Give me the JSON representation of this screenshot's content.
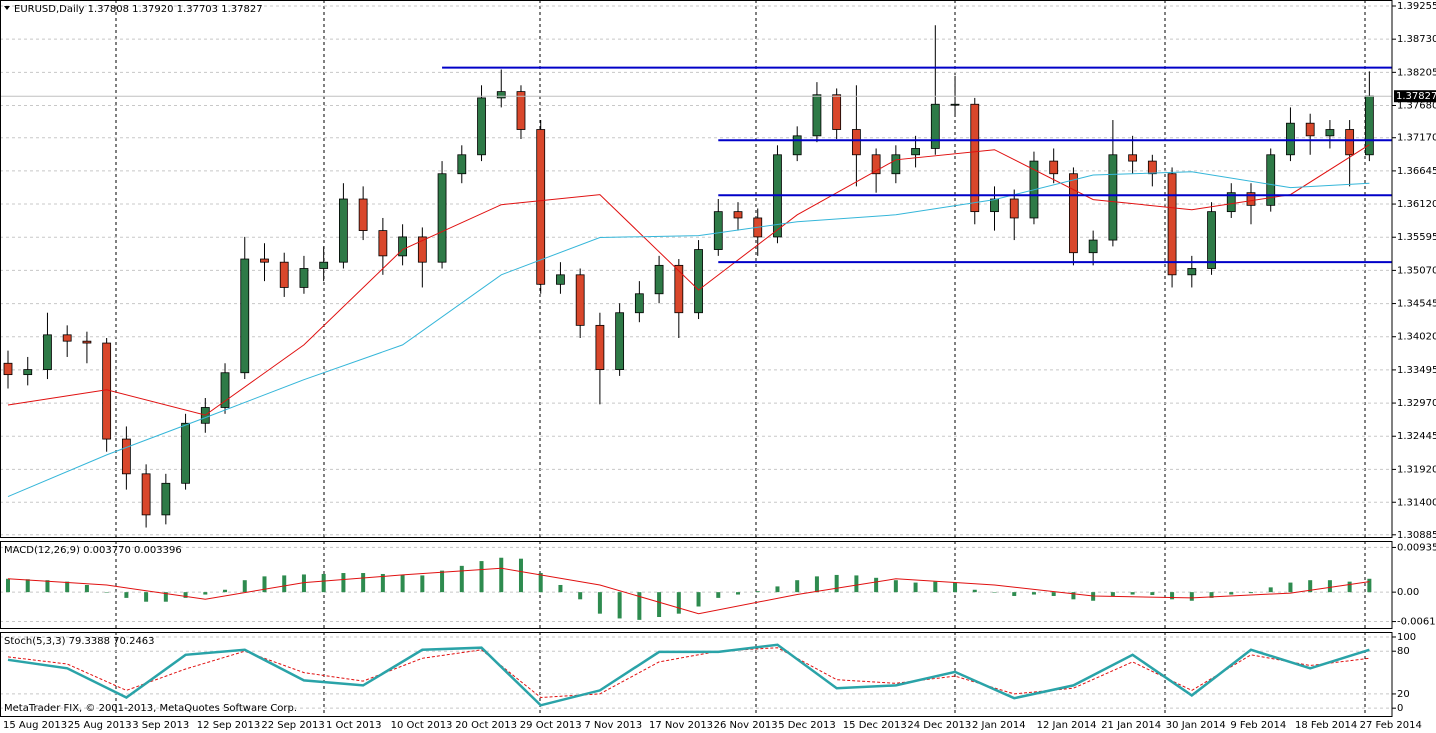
{
  "chart_data": [
    {
      "type": "candlestick",
      "title": "EURUSD,Daily  1.37808 1.37920 1.37703 1.37827",
      "up_color": "#2e7a47",
      "down_color": "#d9472b",
      "open": [
        1.336,
        1.3342,
        1.335,
        1.3405,
        1.3395,
        1.3392,
        1.324,
        1.3185,
        1.312,
        1.317,
        1.3265,
        1.329,
        1.3345,
        1.3525,
        1.352,
        1.348,
        1.351,
        1.352,
        1.362,
        1.357,
        1.353,
        1.356,
        1.352,
        1.366,
        1.369,
        1.378,
        1.379,
        1.373,
        1.3485,
        1.35,
        1.342,
        1.335,
        1.344,
        1.347,
        1.3515,
        1.344,
        1.354,
        1.36,
        1.359,
        1.356,
        1.369,
        1.372,
        1.3785,
        1.373,
        1.369,
        1.366,
        1.369,
        1.37,
        1.377,
        1.377,
        1.36,
        1.362,
        1.359,
        1.368,
        1.366,
        1.3535,
        1.3555,
        1.369,
        1.368,
        1.366,
        1.35,
        1.351,
        1.36,
        1.363,
        1.361,
        1.369,
        1.374,
        1.372,
        1.373,
        1.369
      ],
      "high": [
        1.338,
        1.337,
        1.344,
        1.342,
        1.341,
        1.34,
        1.326,
        1.32,
        1.3185,
        1.328,
        1.3305,
        1.336,
        1.356,
        1.355,
        1.3535,
        1.353,
        1.3545,
        1.3645,
        1.364,
        1.359,
        1.358,
        1.3575,
        1.368,
        1.3705,
        1.38,
        1.3825,
        1.38,
        1.3745,
        1.352,
        1.351,
        1.344,
        1.3455,
        1.349,
        1.353,
        1.3525,
        1.3555,
        1.362,
        1.3615,
        1.3605,
        1.3705,
        1.3735,
        1.3805,
        1.3795,
        1.38,
        1.37,
        1.3705,
        1.372,
        1.3895,
        1.3815,
        1.378,
        1.364,
        1.3635,
        1.3695,
        1.37,
        1.367,
        1.357,
        1.3745,
        1.372,
        1.369,
        1.367,
        1.353,
        1.3615,
        1.3645,
        1.3645,
        1.37,
        1.3765,
        1.3755,
        1.3745,
        1.3745,
        1.3822
      ],
      "low": [
        1.332,
        1.3325,
        1.3335,
        1.337,
        1.336,
        1.322,
        1.316,
        1.31,
        1.3105,
        1.316,
        1.325,
        1.328,
        1.3335,
        1.349,
        1.3465,
        1.347,
        1.349,
        1.351,
        1.3555,
        1.35,
        1.3515,
        1.348,
        1.351,
        1.3645,
        1.368,
        1.3765,
        1.3715,
        1.347,
        1.347,
        1.34,
        1.3295,
        1.334,
        1.3425,
        1.3455,
        1.34,
        1.343,
        1.353,
        1.357,
        1.353,
        1.355,
        1.368,
        1.371,
        1.3715,
        1.364,
        1.363,
        1.3645,
        1.367,
        1.369,
        1.375,
        1.358,
        1.357,
        1.3555,
        1.358,
        1.3645,
        1.3515,
        1.3515,
        1.3545,
        1.366,
        1.364,
        1.348,
        1.348,
        1.35,
        1.359,
        1.358,
        1.36,
        1.368,
        1.369,
        1.37,
        1.364,
        1.368
      ],
      "close": [
        1.3342,
        1.335,
        1.3405,
        1.3395,
        1.3392,
        1.324,
        1.3185,
        1.312,
        1.317,
        1.3265,
        1.329,
        1.3345,
        1.3525,
        1.352,
        1.348,
        1.351,
        1.352,
        1.362,
        1.357,
        1.353,
        1.356,
        1.352,
        1.366,
        1.369,
        1.378,
        1.379,
        1.373,
        1.3485,
        1.35,
        1.342,
        1.335,
        1.344,
        1.347,
        1.3515,
        1.344,
        1.354,
        1.36,
        1.359,
        1.356,
        1.369,
        1.372,
        1.3785,
        1.373,
        1.369,
        1.366,
        1.369,
        1.37,
        1.377,
        1.377,
        1.36,
        1.362,
        1.359,
        1.368,
        1.366,
        1.3535,
        1.3555,
        1.369,
        1.368,
        1.366,
        1.35,
        1.351,
        1.36,
        1.363,
        1.361,
        1.369,
        1.374,
        1.372,
        1.373,
        1.369,
        1.3783
      ],
      "series": [
        {
          "color": "#e01010",
          "x": [
            0,
            5,
            10,
            15,
            20,
            25,
            30,
            35,
            40,
            45,
            50,
            55,
            60,
            65,
            69
          ],
          "values": [
            1.3294,
            1.3318,
            1.3278,
            1.3389,
            1.354,
            1.3611,
            1.3627,
            1.3476,
            1.3595,
            1.3682,
            1.3698,
            1.3619,
            1.3603,
            1.3627,
            1.3706
          ]
        },
        {
          "color": "#35b6d9",
          "x": [
            0,
            5,
            10,
            15,
            20,
            25,
            30,
            35,
            40,
            45,
            50,
            55,
            60,
            65,
            69
          ],
          "values": [
            1.3149,
            1.3215,
            1.3274,
            1.3334,
            1.3389,
            1.35,
            1.3559,
            1.3562,
            1.3584,
            1.3595,
            1.3619,
            1.3658,
            1.3663,
            1.3638,
            1.3645
          ]
        }
      ],
      "levels": [
        {
          "value": 1.3828,
          "from": 22
        },
        {
          "value": 1.3713,
          "from": 36
        },
        {
          "value": 1.3626,
          "from": 36
        },
        {
          "value": 1.352,
          "from": 36
        }
      ],
      "level_color": "#0000c8",
      "last_price": 1.37827,
      "ylim": [
        1.3085,
        1.3935
      ],
      "yticks": [
        1.39255,
        {
          "value": 1.3873,
          "label": "1.38730"
        },
        1.38205,
        {
          "value": 1.3768,
          "label": "1.37680"
        },
        {
          "value": 1.3717,
          "label": "1.37170"
        },
        1.36645,
        {
          "value": 1.3612,
          "label": "1.36120"
        },
        1.35595,
        {
          "value": 1.3507,
          "label": "1.35070"
        },
        1.34545,
        {
          "value": 1.3402,
          "label": "1.34020"
        },
        1.33495,
        {
          "value": 1.3297,
          "label": "1.32970"
        },
        1.32445,
        {
          "value": 1.3192,
          "label": "1.31920"
        },
        {
          "value": 1.314,
          "label": "1.31400"
        },
        1.30885
      ],
      "xtick_labels": [
        "15 Aug 2013",
        "25 Aug 2013",
        "3 Sep 2013",
        "12 Sep 2013",
        "22 Sep 2013",
        "1 Oct 2013",
        "10 Oct 2013",
        "20 Oct 2013",
        "29 Oct 2013",
        "7 Nov 2013",
        "17 Nov 2013",
        "26 Nov 2013",
        "5 Dec 2013",
        "15 Dec 2013",
        "24 Dec 2013",
        "2 Jan 2014",
        "12 Jan 2014",
        "21 Jan 2014",
        "30 Jan 2014",
        "9 Feb 2014",
        "18 Feb 2014",
        "27 Feb 2014"
      ]
    },
    {
      "type": "macd",
      "title": "MACD(12,26,9) 0.003770 0.003396",
      "color": "#2e8b4f",
      "values": [
        0.0028,
        0.0027,
        0.0025,
        0.0022,
        0.0015,
        0.0,
        -0.0012,
        -0.002,
        -0.002,
        -0.0012,
        -0.0005,
        0.0005,
        0.0025,
        0.0033,
        0.0035,
        0.0037,
        0.0038,
        0.004,
        0.004,
        0.0038,
        0.0036,
        0.0035,
        0.0045,
        0.0055,
        0.0065,
        0.0072,
        0.007,
        0.004,
        0.0015,
        -0.0015,
        -0.0045,
        -0.0055,
        -0.0058,
        -0.0052,
        -0.0045,
        -0.003,
        -0.0012,
        -0.0005,
        0.0002,
        0.0012,
        0.0025,
        0.0033,
        0.0036,
        0.0035,
        0.003,
        0.0025,
        0.002,
        0.0022,
        0.002,
        0.0005,
        0.0,
        -0.0008,
        -0.0005,
        -0.0008,
        -0.0015,
        -0.0018,
        -0.0008,
        -0.0005,
        -0.0006,
        -0.0015,
        -0.0018,
        -0.0012,
        -0.0005,
        -0.0002,
        0.001,
        0.002,
        0.0025,
        0.0025,
        0.0022,
        0.0028
      ],
      "series": [
        {
          "color": "#e01010",
          "x": [
            0,
            5,
            10,
            15,
            20,
            25,
            30,
            35,
            40,
            45,
            50,
            55,
            60,
            65,
            69
          ],
          "values": [
            0.0028,
            0.0015,
            -0.0015,
            0.002,
            0.0036,
            0.005,
            0.0015,
            -0.0045,
            -0.0005,
            0.0028,
            0.0015,
            -0.0008,
            -0.0012,
            -0.0002,
            0.0022
          ]
        }
      ],
      "ylim": [
        -0.0075,
        0.0107
      ],
      "yticks": [
        0.009354,
        {
          "value": 0,
          "label": "0.00"
        },
        -0.006153
      ]
    },
    {
      "type": "stoch",
      "title": "Stoch(5,3,3) 79.3388 70.2463",
      "footer": "MetaTrader FIX, © 2001-2013, MetaQuotes Software Corp.",
      "series": [
        {
          "color": "#2aa3a8",
          "x": [
            0,
            3,
            6,
            9,
            12,
            15,
            18,
            21,
            24,
            27,
            30,
            33,
            36,
            39,
            42,
            45,
            48,
            51,
            54,
            57,
            60,
            63,
            66,
            69
          ],
          "values": [
            68,
            56,
            15,
            75,
            82,
            39,
            32,
            82,
            85,
            4,
            25,
            79,
            79,
            89,
            28,
            32,
            51,
            14,
            32,
            75,
            18,
            82,
            56,
            82
          ]
        },
        {
          "color": "#e01010",
          "x": [
            0,
            3,
            6,
            9,
            12,
            15,
            18,
            21,
            24,
            27,
            30,
            33,
            36,
            39,
            42,
            45,
            48,
            51,
            54,
            57,
            60,
            63,
            66,
            69
          ],
          "values": [
            72,
            62,
            25,
            55,
            80,
            50,
            38,
            70,
            82,
            15,
            20,
            65,
            80,
            85,
            40,
            35,
            45,
            20,
            28,
            65,
            25,
            75,
            60,
            70
          ]
        }
      ],
      "ylim": [
        -11,
        107
      ],
      "yticks": [
        100,
        80,
        20,
        0
      ]
    }
  ]
}
